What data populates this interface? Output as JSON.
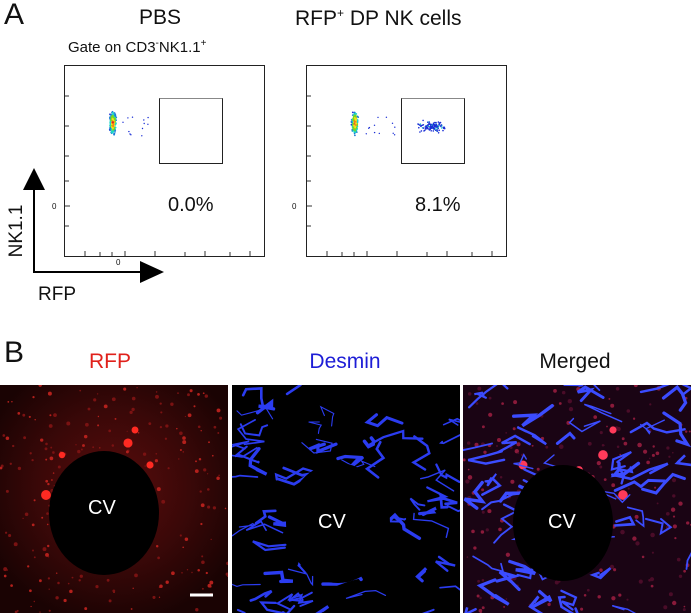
{
  "panel_a": {
    "letter": "A",
    "plots": [
      {
        "title": "PBS",
        "subtitle": "Gate on CD3",
        "subtitle_sup1": "-",
        "subtitle_mid": "NK1.1",
        "subtitle_sup2": "+",
        "percent": "0.0%",
        "zero_x": "0",
        "zero_y": "0"
      },
      {
        "title": "RFP",
        "title_sup": "+",
        "title_rest": " DP NK cells",
        "percent": "8.1%",
        "zero_y": "0"
      }
    ],
    "y_axis_label": "NK1.1",
    "x_axis_label": "RFP"
  },
  "panel_b": {
    "letter": "B",
    "images": [
      {
        "title": "RFP",
        "title_color": "#e0211b",
        "label": "CV"
      },
      {
        "title": "Desmin",
        "title_color": "#1d1dd6",
        "label": "CV"
      },
      {
        "title": "Merged",
        "title_color": "#111111",
        "label": "CV"
      }
    ]
  }
}
